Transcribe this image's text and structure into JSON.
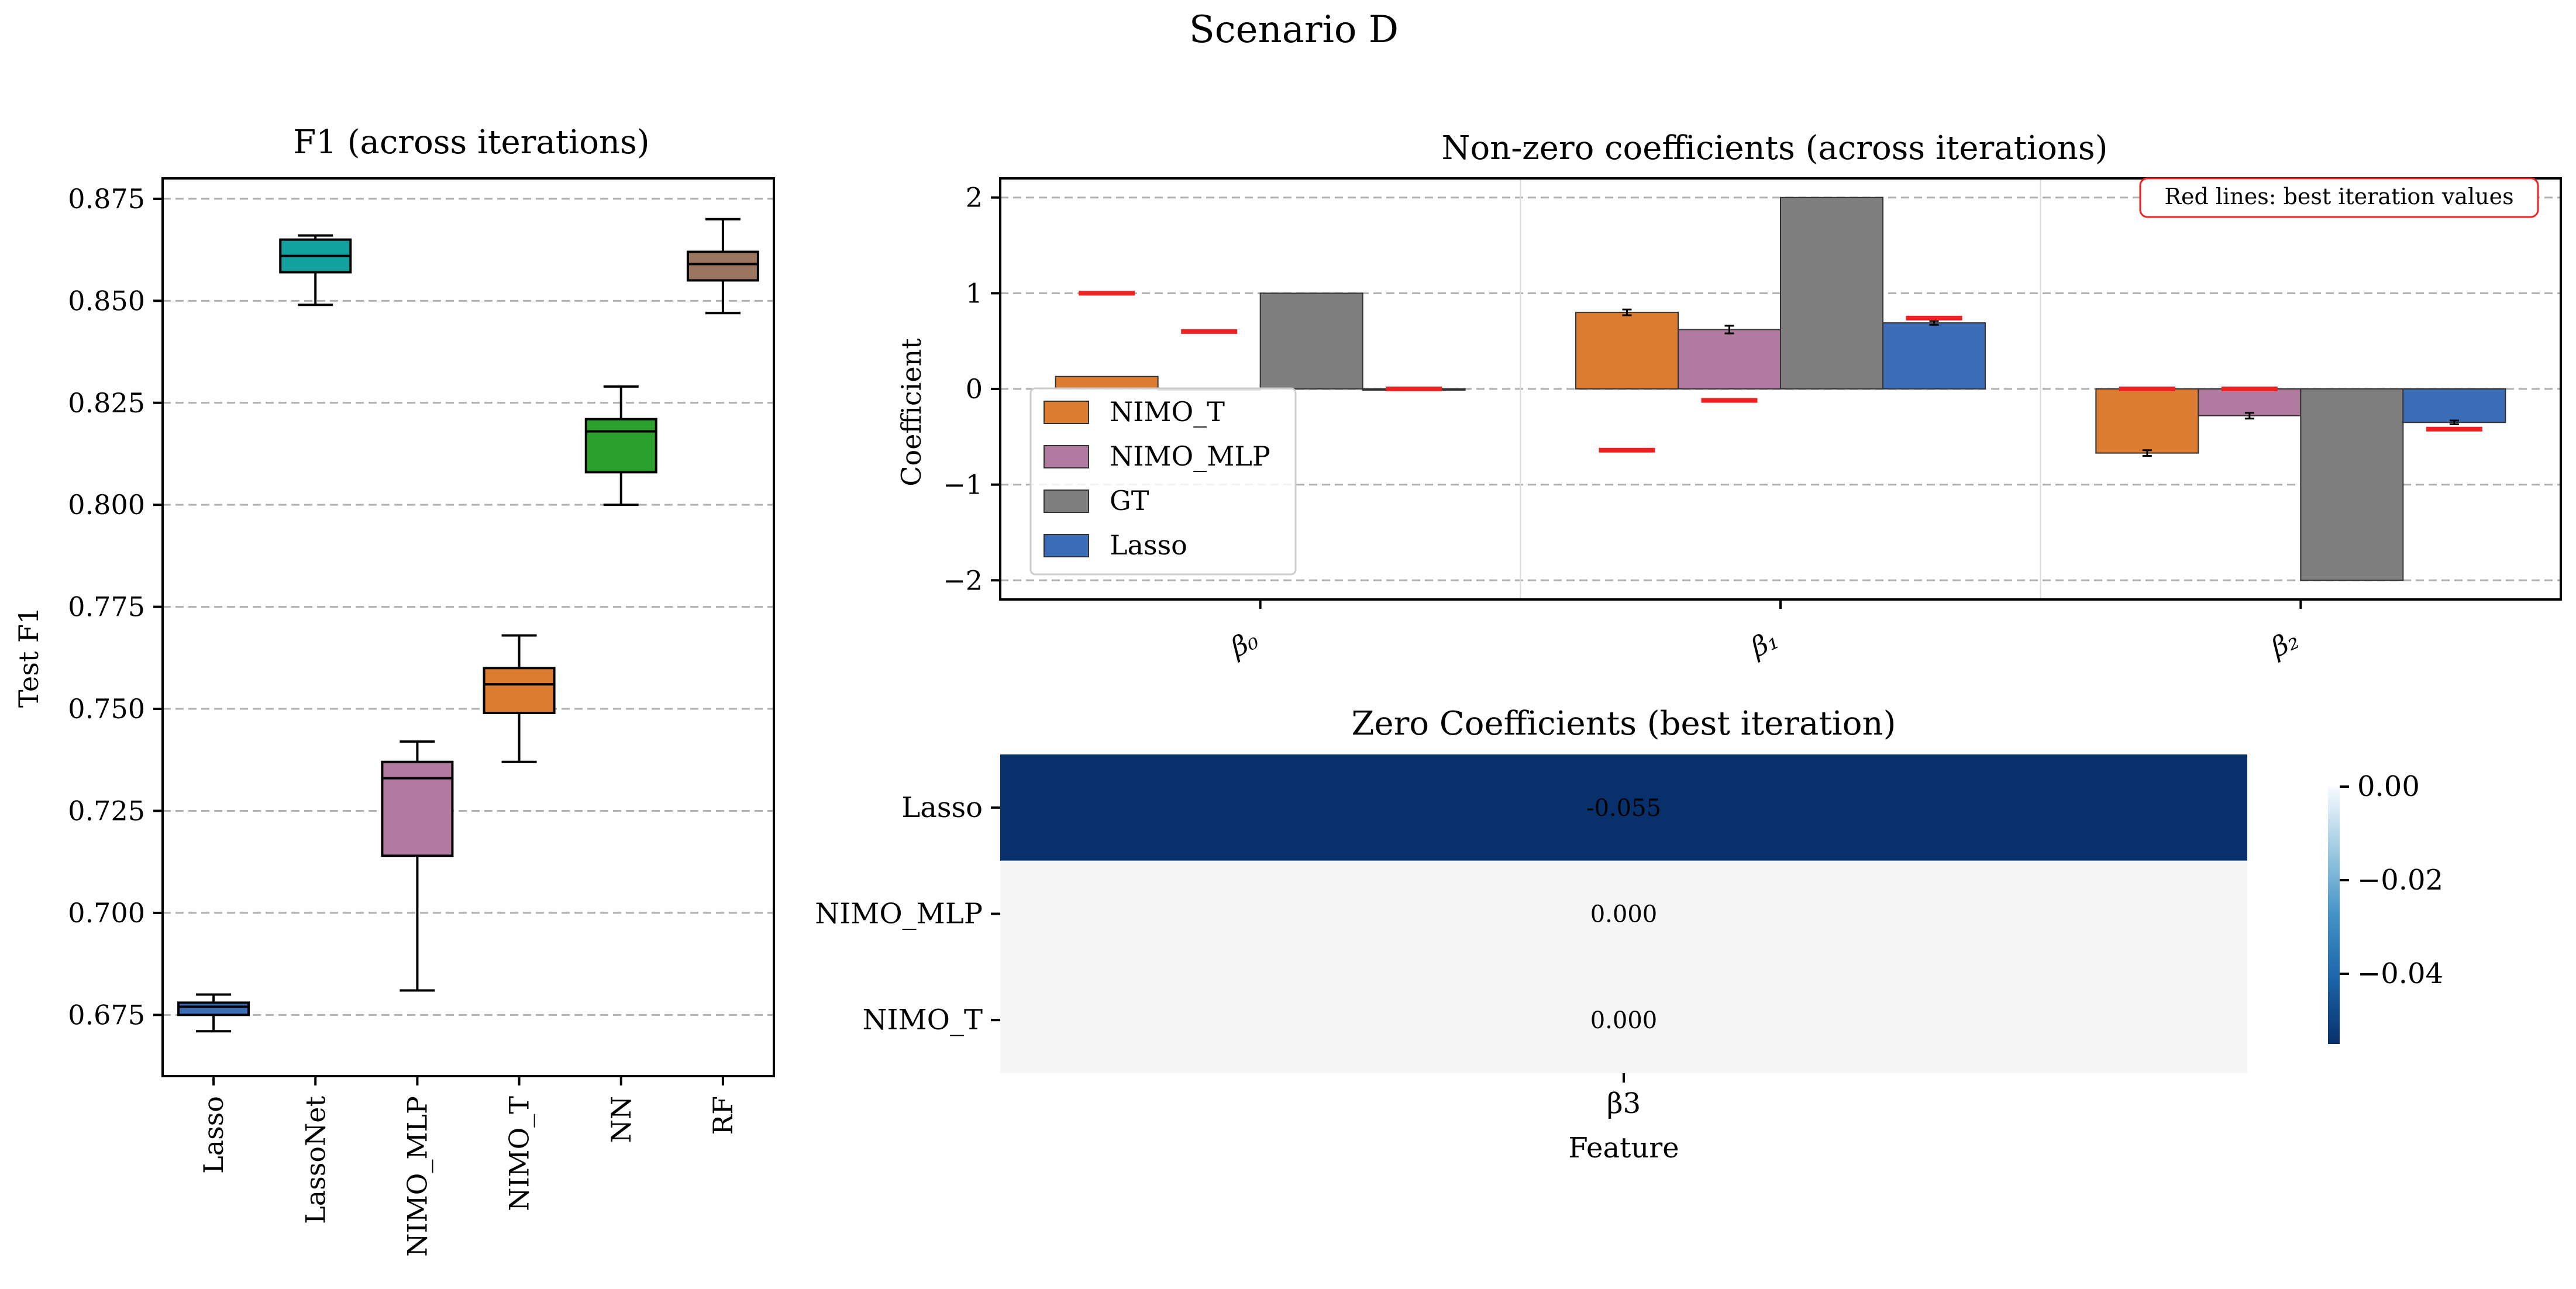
{
  "figure": {
    "suptitle": "Scenario D"
  },
  "chart_data": [
    {
      "type": "box",
      "title": "F1 (across iterations)",
      "xlabel": "",
      "ylabel": "Test F1",
      "ylim": [
        0.66,
        0.88
      ],
      "yticks": [
        0.675,
        0.7,
        0.725,
        0.75,
        0.775,
        0.8,
        0.825,
        0.85,
        0.875
      ],
      "ytick_labels": [
        "0.675",
        "0.700",
        "0.725",
        "0.750",
        "0.775",
        "0.800",
        "0.825",
        "0.850",
        "0.875"
      ],
      "grid": "y-dashed",
      "categories": [
        "Lasso",
        "LassoNet",
        "NIMO_MLP",
        "NIMO_T",
        "NN",
        "RF"
      ],
      "boxes": [
        {
          "name": "Lasso",
          "min": 0.671,
          "q1": 0.675,
          "median": 0.677,
          "q3": 0.678,
          "max": 0.68,
          "color": "#3b6db6"
        },
        {
          "name": "LassoNet",
          "min": 0.849,
          "q1": 0.857,
          "median": 0.861,
          "q3": 0.865,
          "max": 0.866,
          "color": "#12a19e"
        },
        {
          "name": "NIMO_MLP",
          "min": 0.681,
          "q1": 0.714,
          "median": 0.733,
          "q3": 0.737,
          "max": 0.742,
          "color": "#b07aa1"
        },
        {
          "name": "NIMO_T",
          "min": 0.737,
          "q1": 0.749,
          "median": 0.756,
          "q3": 0.76,
          "max": 0.768,
          "color": "#dc7c30"
        },
        {
          "name": "NN",
          "min": 0.8,
          "q1": 0.808,
          "median": 0.818,
          "q3": 0.821,
          "max": 0.829,
          "color": "#2ca02c"
        },
        {
          "name": "RF",
          "min": 0.847,
          "q1": 0.855,
          "median": 0.859,
          "q3": 0.862,
          "max": 0.87,
          "color": "#9c7560"
        }
      ]
    },
    {
      "type": "bar",
      "title": "Non-zero coefficients (across iterations)",
      "xlabel": "",
      "ylabel": "Coefficient",
      "ylim": [
        -2.2,
        2.2
      ],
      "yticks": [
        -2,
        -1,
        0,
        1,
        2
      ],
      "ytick_labels": [
        "−2",
        "−1",
        "0",
        "1",
        "2"
      ],
      "categories": [
        "β₀",
        "β₁",
        "β₂"
      ],
      "grid": "y-dashed",
      "legend": "upper-left",
      "annotation": "Red lines: best iteration values",
      "best_iteration_color": "#ee2222",
      "series": [
        {
          "name": "NIMO_T",
          "color": "#dc7c30",
          "values": [
            0.13,
            0.8,
            -0.67
          ],
          "errors": [
            0.0,
            0.03,
            0.03
          ],
          "best": [
            1.0,
            -0.64,
            0.0
          ]
        },
        {
          "name": "NIMO_MLP",
          "color": "#b07aa1",
          "values": [
            0.0,
            0.62,
            -0.28
          ],
          "errors": [
            0.0,
            0.04,
            0.03
          ],
          "best": [
            0.6,
            -0.12,
            0.0
          ]
        },
        {
          "name": "GT",
          "color": "#7f7f7f",
          "values": [
            1.0,
            2.0,
            -2.0
          ],
          "errors": [
            0.0,
            0.0,
            0.0
          ],
          "best": [
            null,
            null,
            null
          ]
        },
        {
          "name": "Lasso",
          "color": "#3b6db6",
          "values": [
            0.0,
            0.69,
            -0.35
          ],
          "errors": [
            0.0,
            0.02,
            0.02
          ],
          "best": [
            0.0,
            0.74,
            -0.42
          ]
        }
      ]
    },
    {
      "type": "heatmap",
      "title": "Zero Coefficients (best iteration)",
      "xlabel": "Feature",
      "ylabel": "",
      "x_labels": [
        "β3"
      ],
      "y_labels": [
        "Lasso",
        "NIMO_MLP",
        "NIMO_T"
      ],
      "values": [
        [
          -0.055
        ],
        [
          0.0
        ],
        [
          0.0
        ]
      ],
      "cell_labels": [
        [
          "-0.055"
        ],
        [
          "0.000"
        ],
        [
          "0.000"
        ]
      ],
      "colormap": "Blues_r",
      "colorbar_range": [
        -0.055,
        0.0
      ],
      "colorbar_ticks": [
        0.0,
        -0.02,
        -0.04
      ],
      "colorbar_tick_labels": [
        "0.00",
        "−0.02",
        "−0.04"
      ]
    }
  ]
}
